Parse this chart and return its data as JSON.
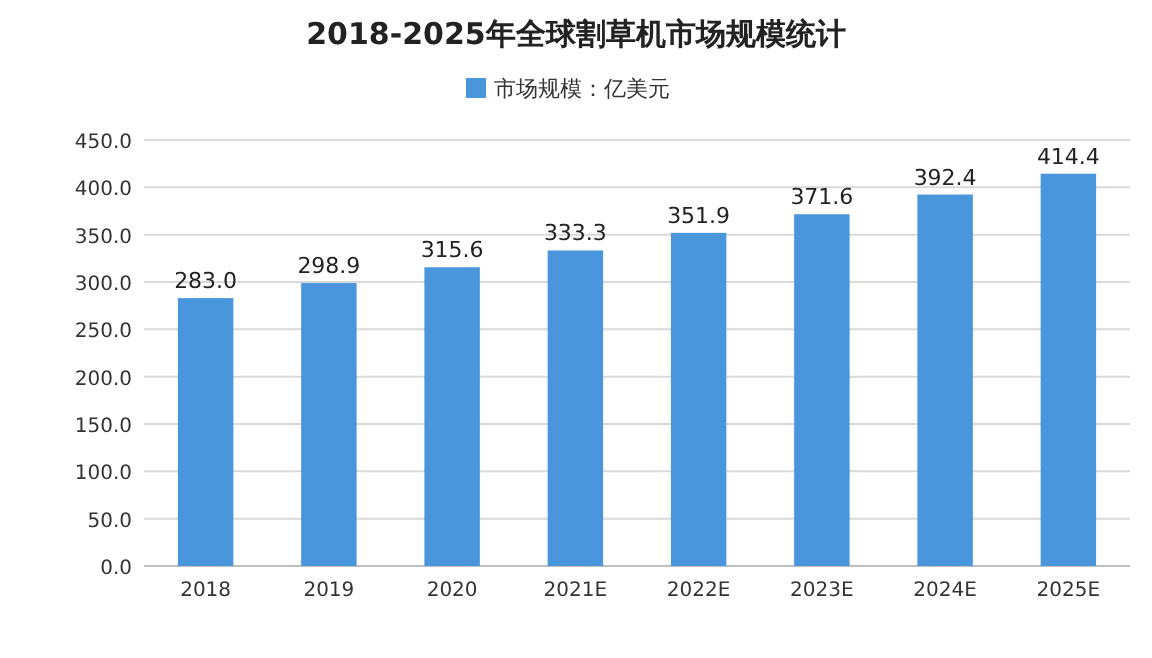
{
  "chart_data": {
    "type": "bar",
    "title": "2018-2025年全球割草机市场规模统计",
    "categories": [
      "2018",
      "2019",
      "2020",
      "2021E",
      "2022E",
      "2023E",
      "2024E",
      "2025E"
    ],
    "series": [
      {
        "name": "市场规模：亿美元",
        "color": "#4a96dc",
        "values": [
          283.0,
          298.9,
          315.6,
          333.3,
          351.9,
          371.6,
          392.4,
          414.4
        ],
        "value_labels": [
          "283.0",
          "298.9",
          "315.6",
          "333.3",
          "351.9",
          "371.6",
          "392.4",
          "414.4"
        ]
      }
    ],
    "ylim": [
      0,
      450
    ],
    "yticks": [
      {
        "value": 0,
        "label": "0.0"
      },
      {
        "value": 50,
        "label": "50.0"
      },
      {
        "value": 100,
        "label": "100.0"
      },
      {
        "value": 150,
        "label": "150.0"
      },
      {
        "value": 200,
        "label": "200.0"
      },
      {
        "value": 250,
        "label": "250.0"
      },
      {
        "value": 300,
        "label": "300.0"
      },
      {
        "value": 350,
        "label": "350.0"
      },
      {
        "value": 400,
        "label": "400.0"
      },
      {
        "value": 450,
        "label": "450.0"
      }
    ],
    "grid": "y",
    "legend": "top"
  }
}
